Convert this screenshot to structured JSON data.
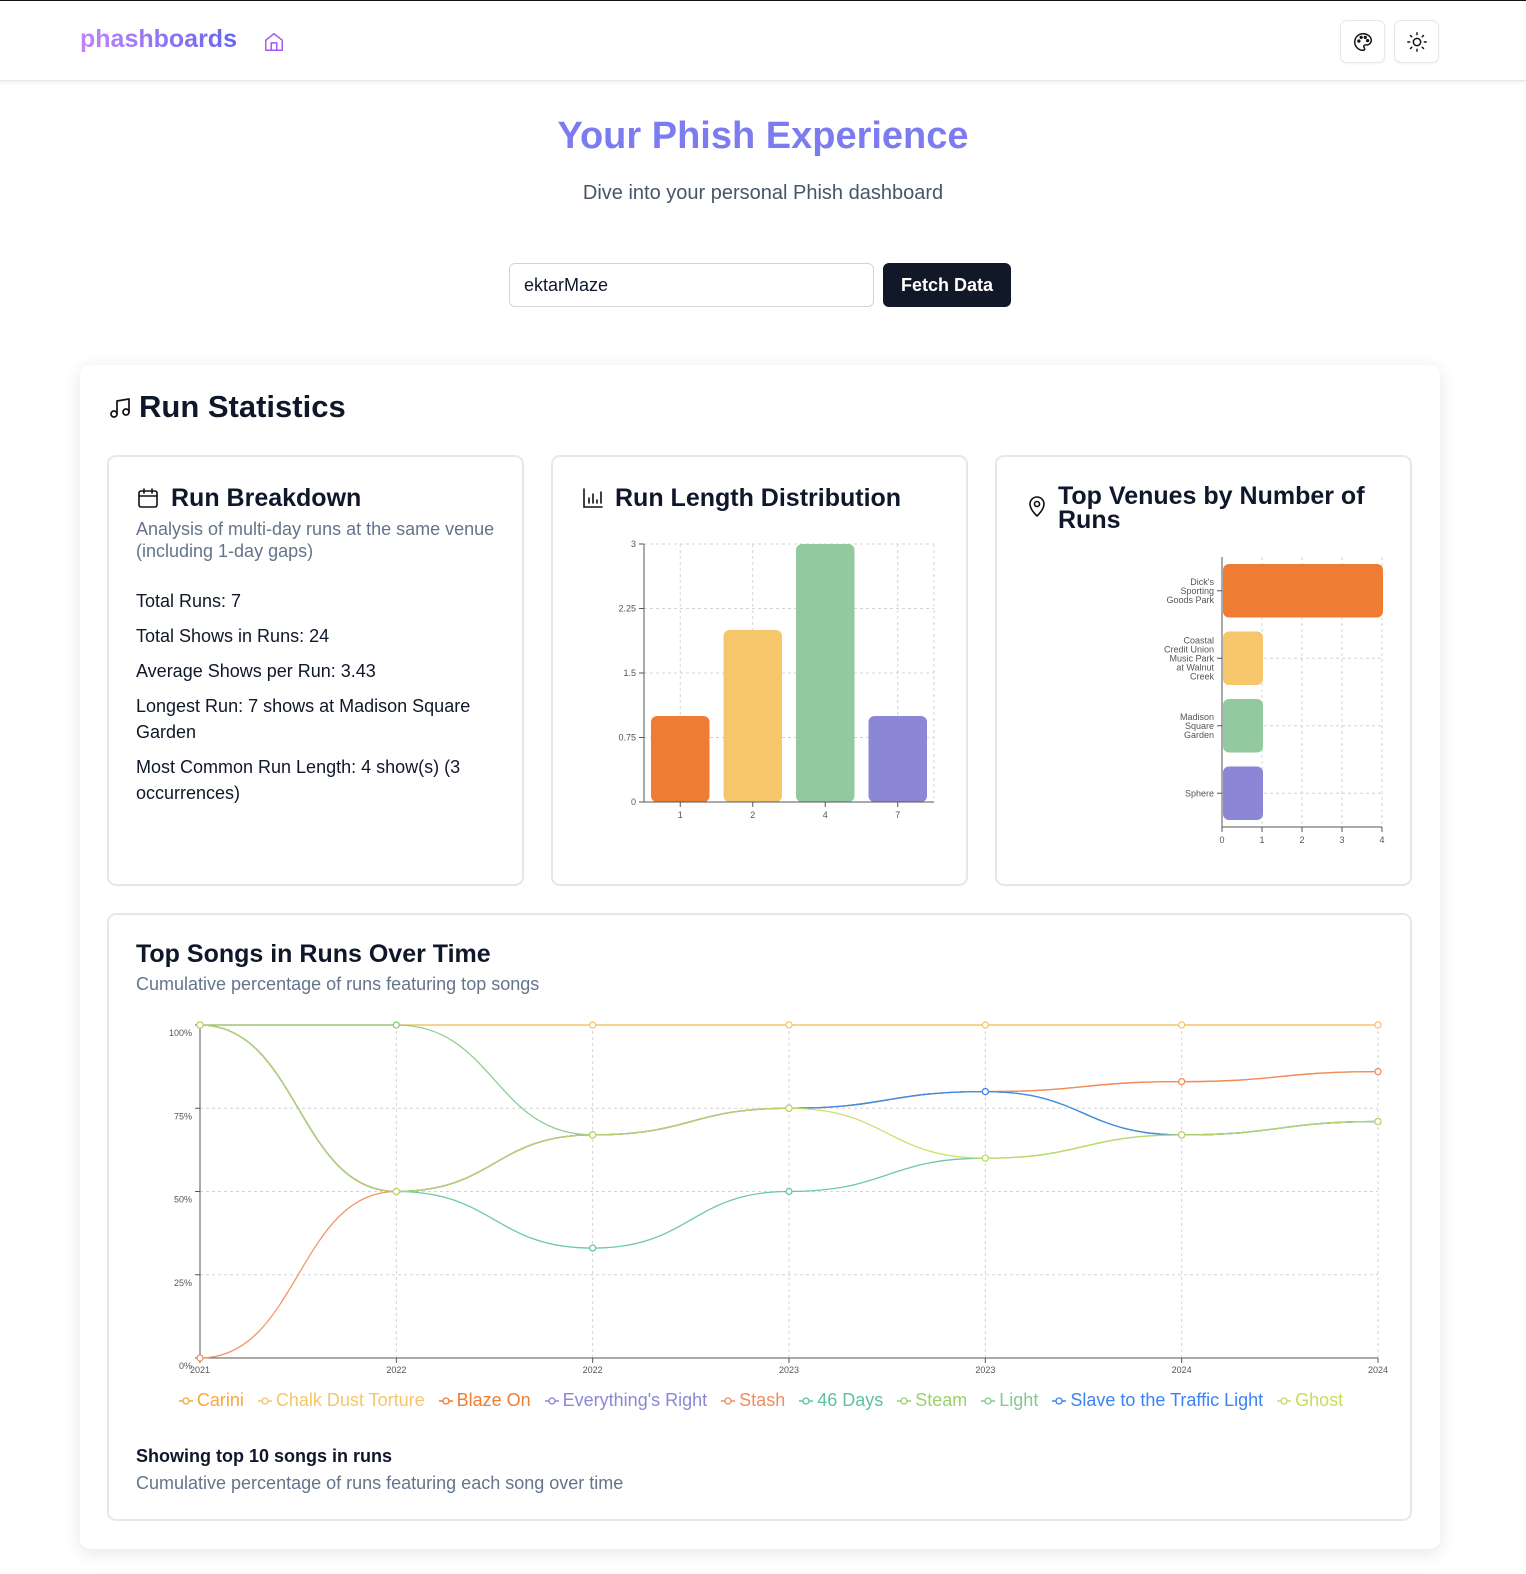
{
  "header": {
    "brand": "phashboards",
    "home_icon": "home-icon",
    "palette_icon": "palette-icon",
    "theme_icon": "sun-icon"
  },
  "hero": {
    "title": "Your Phish Experience",
    "subtitle": "Dive into your personal Phish dashboard"
  },
  "search": {
    "value": "ektarMaze",
    "button_label": "Fetch Data"
  },
  "run_statistics": {
    "title": "Run Statistics",
    "breakdown": {
      "title": "Run Breakdown",
      "description": "Analysis of multi-day runs at the same venue (including 1-day gaps)",
      "stats": [
        "Total Runs: 7",
        "Total Shows in Runs: 24",
        "Average Shows per Run: 3.43",
        "Longest Run: 7 shows at Madison Square Garden",
        "Most Common Run Length: 4 show(s) (3 occurrences)"
      ]
    },
    "distribution": {
      "title": "Run Length Distribution"
    },
    "venues": {
      "title": "Top Venues by Number of Runs"
    }
  },
  "top_songs": {
    "title": "Top Songs in Runs Over Time",
    "subtitle": "Cumulative percentage of runs featuring top songs",
    "footer_title": "Showing top 10 songs in runs",
    "footer_subtitle": "Cumulative percentage of runs featuring each song over time"
  },
  "chart_data": [
    {
      "type": "bar",
      "categories": [
        "1",
        "2",
        "4",
        "7"
      ],
      "values": [
        1,
        2,
        3,
        1
      ],
      "colors": [
        "#ee7d33",
        "#f5c66a",
        "#93c99e",
        "#8b87d6"
      ],
      "ylim": [
        0,
        3
      ],
      "yticks": [
        "0",
        "0.75",
        "1.5",
        "2.25",
        "3"
      ],
      "grid": true
    },
    {
      "type": "bar",
      "orientation": "horizontal",
      "categories": [
        "Dick's Sporting Goods Park",
        "Coastal Credit Union Music Park at Walnut Creek",
        "Madison Square Garden",
        "Sphere"
      ],
      "values": [
        4,
        1,
        1,
        1
      ],
      "colors": [
        "#ee7d33",
        "#f5c66a",
        "#93c99e",
        "#8b87d6"
      ],
      "xlim": [
        0,
        4
      ],
      "xticks": [
        "0",
        "1",
        "2",
        "3",
        "4"
      ],
      "grid": true
    },
    {
      "type": "line",
      "x": [
        "2021",
        "2022",
        "2022",
        "2023",
        "2023",
        "2024",
        "2024"
      ],
      "ylim": [
        0,
        100
      ],
      "yticks": [
        "0%",
        "25%",
        "50%",
        "75%",
        "100%"
      ],
      "grid": true,
      "legend": "bottom",
      "series": [
        {
          "name": "Carini",
          "color": "#f6a93b",
          "values": [
            100,
            100,
            100,
            100,
            100,
            100,
            100
          ]
        },
        {
          "name": "Chalk Dust Torture",
          "color": "#f5c66a",
          "values": [
            100,
            100,
            100,
            100,
            100,
            100,
            100
          ]
        },
        {
          "name": "Blaze On",
          "color": "#ee7d33",
          "values": [
            100,
            50,
            67,
            75,
            80,
            83,
            86
          ]
        },
        {
          "name": "Everything's Right",
          "color": "#8b87d6",
          "values": [
            100,
            50,
            67,
            75,
            80,
            67,
            71
          ]
        },
        {
          "name": "Stash",
          "color": "#f28c5b",
          "values": [
            0,
            50,
            67,
            75,
            80,
            83,
            86
          ]
        },
        {
          "name": "46 Days",
          "color": "#5cc2a0",
          "values": [
            100,
            50,
            33,
            50,
            60,
            67,
            71
          ]
        },
        {
          "name": "Steam",
          "color": "#9ad26b",
          "values": [
            100,
            50,
            67,
            75,
            80,
            67,
            71
          ]
        },
        {
          "name": "Light",
          "color": "#86c98a",
          "values": [
            100,
            100,
            67,
            75,
            80,
            67,
            71
          ]
        },
        {
          "name": "Slave to the Traffic Light",
          "color": "#3b82f6",
          "values": [
            100,
            50,
            67,
            75,
            80,
            67,
            71
          ]
        },
        {
          "name": "Ghost",
          "color": "#c7dd5a",
          "values": [
            100,
            50,
            67,
            75,
            60,
            67,
            71
          ]
        }
      ]
    }
  ]
}
